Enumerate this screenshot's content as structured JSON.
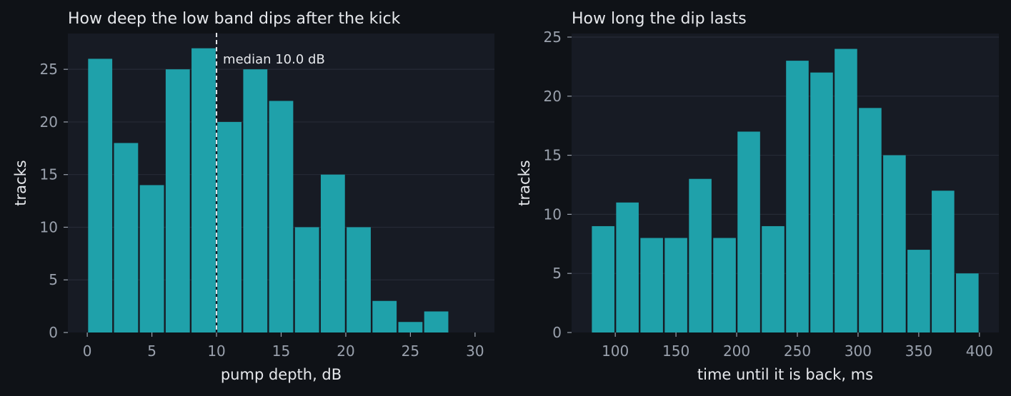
{
  "colors": {
    "page_bg": "#0f1217",
    "plot_bg": "#171b24",
    "grid": "#262b36",
    "bar": "#1fa1aa",
    "tick": "#9aa1ad",
    "text": "#e6e8ec",
    "median_line": "#e6e8ec"
  },
  "chart_data": [
    {
      "type": "bar",
      "title": "How deep the low band dips after the kick",
      "xlabel": "pump depth, dB",
      "ylabel": "tracks",
      "bin_edges": [
        0,
        2,
        4,
        6,
        8,
        10,
        12,
        14,
        16,
        18,
        20,
        22,
        24,
        26,
        28
      ],
      "values": [
        26,
        18,
        14,
        25,
        27,
        20,
        25,
        22,
        10,
        15,
        10,
        3,
        1,
        2
      ],
      "xlim": [
        -1.5,
        31.5
      ],
      "ylim": [
        0,
        28.4
      ],
      "xticks": [
        0,
        5,
        10,
        15,
        20,
        25,
        30
      ],
      "yticks": [
        0,
        5,
        10,
        15,
        20,
        25
      ],
      "grid": "horizontal",
      "median": {
        "value": 10.0,
        "label": "median 10.0 dB"
      }
    },
    {
      "type": "bar",
      "title": "How long the dip lasts",
      "xlabel": "time until it is back, ms",
      "ylabel": "tracks",
      "bin_edges": [
        80,
        100,
        120,
        140,
        160,
        180,
        200,
        220,
        240,
        260,
        280,
        300,
        320,
        340,
        360,
        380,
        400
      ],
      "values": [
        9,
        11,
        8,
        8,
        13,
        8,
        17,
        9,
        23,
        22,
        24,
        19,
        15,
        7,
        12,
        5
      ],
      "xlim": [
        64,
        416
      ],
      "ylim": [
        0,
        25.3
      ],
      "xticks": [
        100,
        150,
        200,
        250,
        300,
        350,
        400
      ],
      "yticks": [
        0,
        5,
        10,
        15,
        20,
        25
      ],
      "grid": "horizontal"
    }
  ]
}
